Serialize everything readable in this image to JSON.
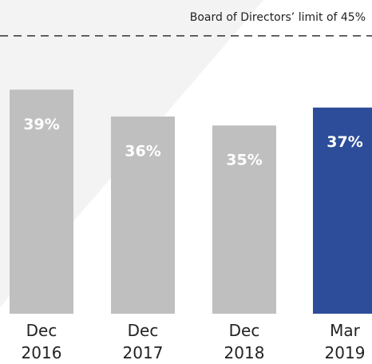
{
  "chart_data": {
    "type": "bar",
    "categories": [
      "Dec 2016",
      "Dec 2017",
      "Dec 2018",
      "Mar 2019"
    ],
    "values": [
      39,
      36,
      35,
      37
    ],
    "value_labels": [
      "39%",
      "36%",
      "35%",
      "37%"
    ],
    "colors": [
      "#bfbfbf",
      "#bfbfbf",
      "#bfbfbf",
      "#2d4d9a"
    ],
    "ylim": [
      14,
      49
    ],
    "reference_line": {
      "value": 45,
      "label": "Board of Directors’ limit of 45%"
    }
  }
}
